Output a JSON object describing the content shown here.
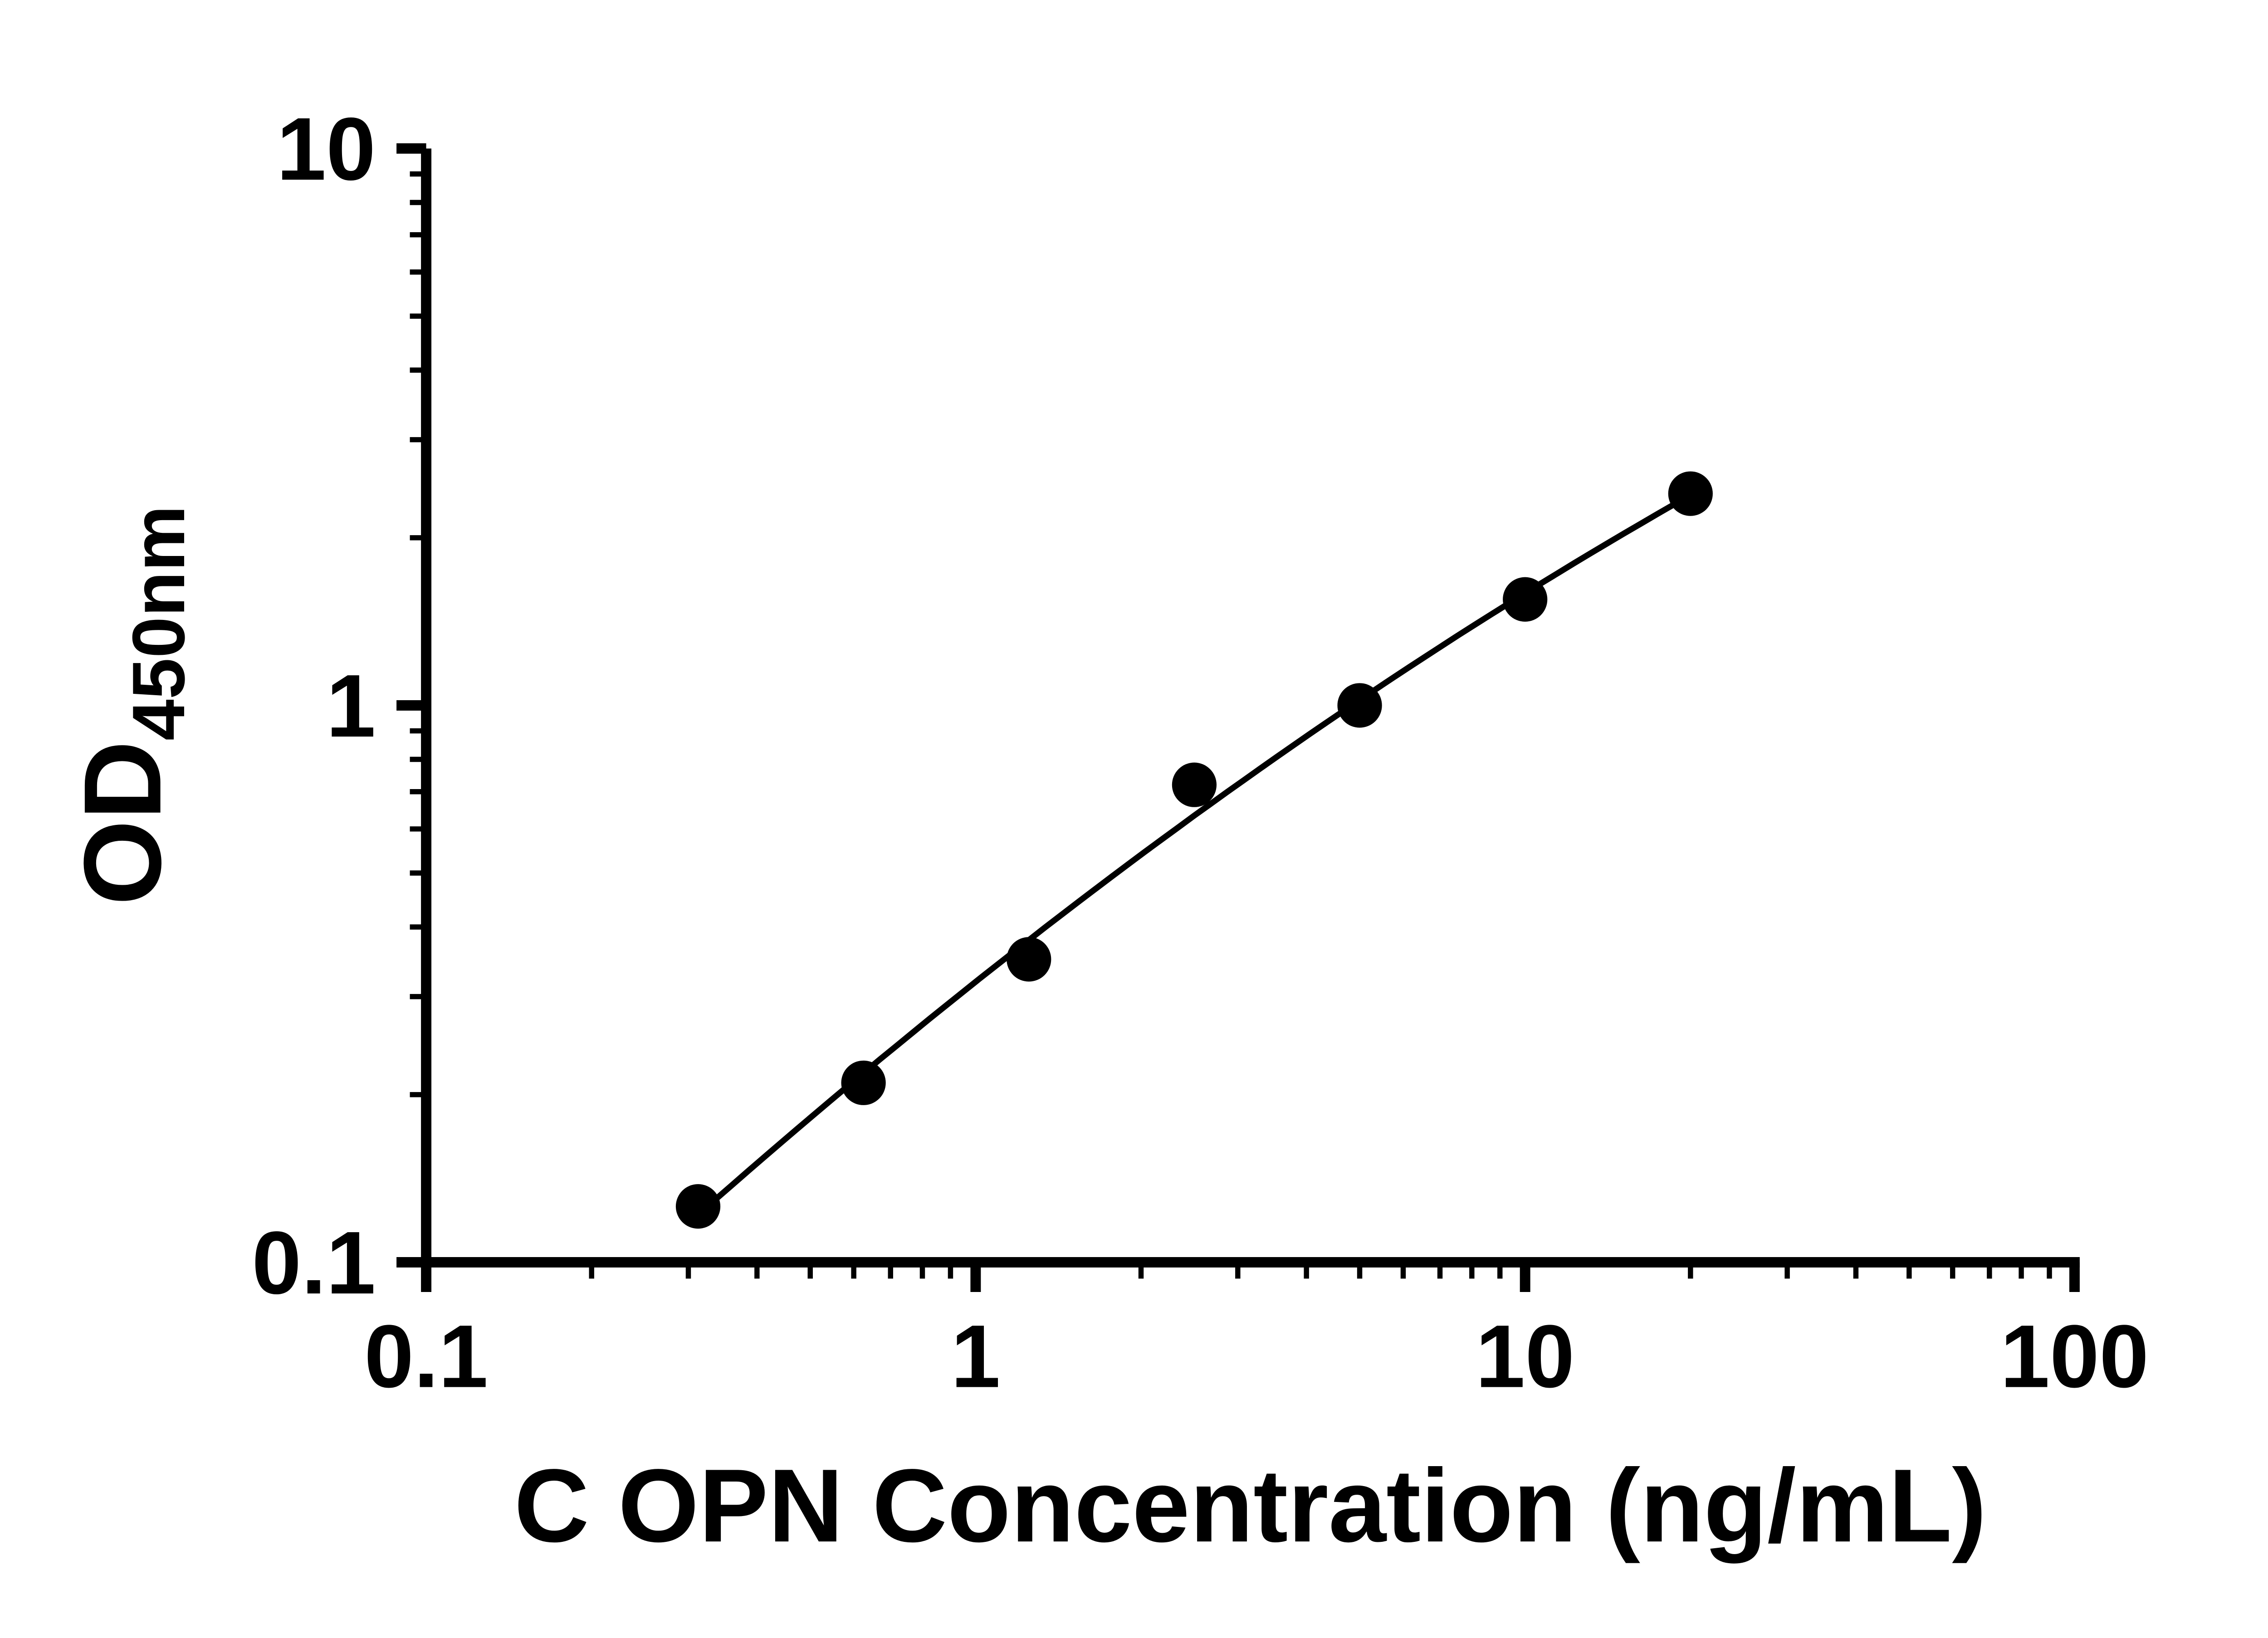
{
  "chart_data": {
    "type": "scatter",
    "title": "",
    "xlabel": "C OPN Concentration (ng/mL)",
    "ylabel_main": "OD",
    "ylabel_sub": "450nm",
    "x_scale": "log",
    "y_scale": "log",
    "xlim": [
      0.1,
      100
    ],
    "ylim": [
      0.1,
      10
    ],
    "grid": false,
    "legend": "none",
    "x_ticks": [
      {
        "value": 0.1,
        "label": "0.1"
      },
      {
        "value": 1,
        "label": "1"
      },
      {
        "value": 10,
        "label": "10"
      },
      {
        "value": 100,
        "label": "100"
      }
    ],
    "y_ticks": [
      {
        "value": 0.1,
        "label": "0.1"
      },
      {
        "value": 1,
        "label": "1"
      },
      {
        "value": 10,
        "label": "10"
      }
    ],
    "points": [
      {
        "x": 0.3125,
        "y": 0.126
      },
      {
        "x": 0.625,
        "y": 0.21
      },
      {
        "x": 1.25,
        "y": 0.35
      },
      {
        "x": 2.5,
        "y": 0.72
      },
      {
        "x": 5,
        "y": 1.0
      },
      {
        "x": 10,
        "y": 1.55
      },
      {
        "x": 20,
        "y": 2.4
      }
    ],
    "fit_line": true,
    "marker_color": "#000000",
    "line_color": "#000000",
    "axis_color": "#000000"
  }
}
